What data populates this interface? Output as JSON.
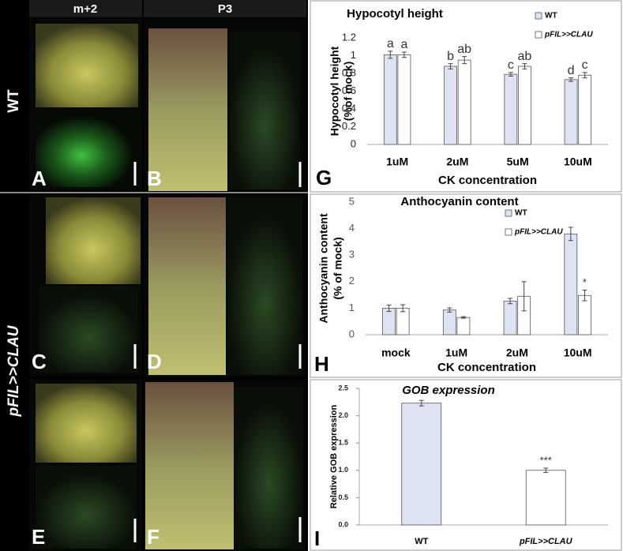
{
  "photo_panels": {
    "column_headers": [
      "m+2",
      "P3"
    ],
    "row_labels": [
      "WT",
      "pFIL>>CLAU"
    ],
    "letters": [
      "A",
      "B",
      "C",
      "D",
      "E",
      "F"
    ]
  },
  "chart_data": [
    {
      "type": "bar",
      "panel_label": "G",
      "title": "Hypocotyl height",
      "ylabel": [
        "Hypocotyl height",
        "(%of mock)"
      ],
      "xlabel": "CK concentration",
      "categories": [
        "1uM",
        "2uM",
        "5uM",
        "10uM"
      ],
      "series": [
        {
          "name": "WT",
          "color": "#dde3f2",
          "values": [
            1.01,
            0.88,
            0.79,
            0.73
          ],
          "errors": [
            0.04,
            0.03,
            0.02,
            0.02
          ],
          "significance": [
            "a",
            "b",
            "c",
            "d"
          ]
        },
        {
          "name": "pFIL>>CLAU",
          "color": "#ffffff",
          "values": [
            1.01,
            0.95,
            0.88,
            0.78
          ],
          "errors": [
            0.03,
            0.04,
            0.03,
            0.03
          ],
          "significance": [
            "a",
            "ab",
            "ab",
            "c"
          ]
        }
      ],
      "ylim": [
        0,
        1.2
      ],
      "yticks": [
        0,
        0.2,
        0.4,
        0.6,
        0.8,
        1,
        1.2
      ]
    },
    {
      "type": "bar",
      "panel_label": "H",
      "title": "Anthocyanin content",
      "ylabel": [
        "Anthocyanin content",
        "(% of mock)"
      ],
      "xlabel": "CK concentration",
      "categories": [
        "mock",
        "1uM",
        "2uM",
        "10uM"
      ],
      "series": [
        {
          "name": "WT",
          "color": "#dde3f2",
          "values": [
            1.0,
            0.93,
            1.27,
            3.8
          ],
          "errors": [
            0.12,
            0.08,
            0.1,
            0.25
          ],
          "significance": [
            null,
            null,
            null,
            null
          ]
        },
        {
          "name": "pFIL>>CLAU",
          "color": "#ffffff",
          "values": [
            1.0,
            0.65,
            1.45,
            1.48
          ],
          "errors": [
            0.13,
            0.03,
            0.55,
            0.2
          ],
          "significance": [
            null,
            null,
            null,
            "*"
          ]
        }
      ],
      "ylim": [
        0,
        5
      ],
      "yticks": [
        0,
        1,
        2,
        3,
        4,
        5
      ]
    },
    {
      "type": "bar",
      "panel_label": "I",
      "title": "GOB expression",
      "ylabel": [
        "Relative GOB expression"
      ],
      "categories": [
        "WT",
        "pFIL>>CLAU"
      ],
      "values": [
        2.23,
        1.0
      ],
      "errors": [
        0.05,
        0.04
      ],
      "colors": [
        "#dde3f2",
        "#ffffff"
      ],
      "significance": [
        null,
        "***"
      ],
      "ylim": [
        0,
        2.5
      ],
      "yticks": [
        {
          "value": 0,
          "label": "0.0"
        },
        0.5,
        {
          "value": 1,
          "label": "1.0"
        },
        1.5,
        {
          "value": 2,
          "label": "2.0"
        },
        2.5
      ]
    }
  ]
}
